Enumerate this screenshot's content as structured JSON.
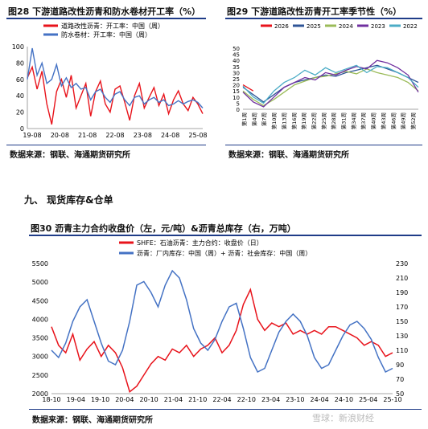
{
  "fig28": {
    "title": "图28  下游道路改性沥青和防水卷材开工率（%）",
    "source": "数据来源：钢联、海通期货研究所",
    "chart_data": {
      "type": "line",
      "x_ticks": [
        "19-08",
        "20-08",
        "21-08",
        "22-08",
        "23-08",
        "24-08",
        "25-08"
      ],
      "ylim": [
        0,
        100
      ],
      "y_ticks": [
        0,
        20,
        40,
        60,
        80,
        100
      ],
      "series": [
        {
          "name": "道路改性沥青：开工率：中国（周）",
          "color": "#e8131b",
          "values": [
            62,
            75,
            48,
            70,
            30,
            5,
            45,
            60,
            38,
            65,
            25,
            40,
            55,
            15,
            45,
            58,
            30,
            20,
            48,
            52,
            32,
            10,
            40,
            55,
            25,
            38,
            50,
            28,
            42,
            18,
            35,
            46,
            30,
            22,
            38,
            30,
            18
          ]
        },
        {
          "name": "防水卷材：开工率：中国（周）",
          "color": "#4472c4",
          "values": [
            60,
            98,
            65,
            80,
            55,
            60,
            78,
            52,
            62,
            50,
            55,
            48,
            50,
            35,
            45,
            48,
            38,
            32,
            42,
            45,
            35,
            28,
            38,
            40,
            30,
            35,
            38,
            32,
            35,
            28,
            30,
            34,
            30,
            33,
            35,
            32,
            25
          ]
        }
      ]
    }
  },
  "fig29": {
    "title": "图29  下游道路改性沥青开工率季节性（%）",
    "source": "数据来源：钢联、海通期货研究所",
    "chart_data": {
      "type": "line",
      "x_ticks": [
        "第1周",
        "第4周",
        "第7周",
        "第10周",
        "第13周",
        "第16周",
        "第19周",
        "第22周",
        "第25周",
        "第28周",
        "第31周",
        "第34周",
        "第37周",
        "第40周",
        "第43周",
        "第46周",
        "第49周",
        "第52周"
      ],
      "ylim": [
        0,
        50
      ],
      "y_ticks": [
        0,
        5,
        10,
        15,
        20,
        25,
        30,
        35,
        40,
        45,
        50
      ],
      "series": [
        {
          "name": "2026",
          "color": "#e8131b",
          "values": [
            20,
            15
          ]
        },
        {
          "name": "2025",
          "color": "#2f5597",
          "values": [
            18,
            12,
            6,
            12,
            18,
            22,
            24,
            26,
            28,
            27,
            30,
            32,
            34,
            36,
            33,
            30,
            26,
            22
          ]
        },
        {
          "name": "2024",
          "color": "#9bbb59",
          "values": [
            15,
            8,
            3,
            8,
            14,
            20,
            23,
            26,
            27,
            29,
            31,
            29,
            33,
            30,
            28,
            26,
            22,
            15
          ]
        },
        {
          "name": "2023",
          "color": "#7030a0",
          "values": [
            14,
            6,
            2,
            10,
            18,
            22,
            26,
            24,
            30,
            28,
            32,
            35,
            33,
            40,
            38,
            34,
            28,
            14
          ]
        },
        {
          "name": "2022",
          "color": "#4bacc6",
          "values": [
            19,
            10,
            5,
            15,
            22,
            26,
            32,
            28,
            34,
            30,
            33,
            36,
            30,
            35,
            34,
            30,
            26,
            18
          ]
        }
      ]
    }
  },
  "section": {
    "title": "九、   现货库存&仓单"
  },
  "fig30": {
    "title": "图30  沥青主力合约收盘价（左，元/吨）&沥青总库存（右，万吨）",
    "source": "数据来源：钢联、海通期货研究所",
    "watermark": "雪球：新浪财经",
    "chart_data": {
      "type": "line",
      "x_ticks": [
        "18-10",
        "19-04",
        "19-10",
        "20-04",
        "20-10",
        "21-04",
        "21-10",
        "22-04",
        "22-10",
        "23-04",
        "23-10",
        "24-04",
        "24-10",
        "25-04",
        "25-10"
      ],
      "ylim_left": [
        2000,
        5500
      ],
      "y_ticks_left": [
        2000,
        2500,
        3000,
        3500,
        4000,
        4500,
        5000,
        5500
      ],
      "ylim_right": [
        50,
        230
      ],
      "y_ticks_right": [
        50,
        70,
        90,
        110,
        130,
        150,
        170,
        190,
        210,
        230
      ],
      "series": [
        {
          "name": "SHFE：石油沥青：主力合约：收盘价（日）",
          "axis": "left",
          "color": "#e8131b",
          "values": [
            3800,
            3300,
            3100,
            3600,
            2900,
            3200,
            3400,
            3000,
            3300,
            3100,
            2700,
            2050,
            2200,
            2500,
            2800,
            3000,
            2900,
            3200,
            3100,
            3300,
            3000,
            3200,
            3300,
            3500,
            3100,
            3300,
            3700,
            4400,
            4800,
            4000,
            3700,
            3900,
            3800,
            3900,
            3600,
            3700,
            3600,
            3700,
            3600,
            3800,
            3800,
            3700,
            3600,
            3500,
            3300,
            3400,
            3300,
            3000,
            3100
          ]
        },
        {
          "name": "沥青：厂内库存：中国（周）+ 沥青：社会库存：中国（周）",
          "axis": "right",
          "color": "#4472c4",
          "values": [
            110,
            100,
            120,
            150,
            170,
            180,
            150,
            120,
            95,
            90,
            110,
            150,
            200,
            205,
            190,
            170,
            200,
            220,
            210,
            180,
            140,
            120,
            110,
            125,
            150,
            170,
            175,
            140,
            100,
            80,
            85,
            110,
            135,
            150,
            160,
            150,
            130,
            100,
            85,
            90,
            110,
            130,
            145,
            150,
            140,
            125,
            100,
            80,
            85
          ]
        }
      ]
    }
  }
}
